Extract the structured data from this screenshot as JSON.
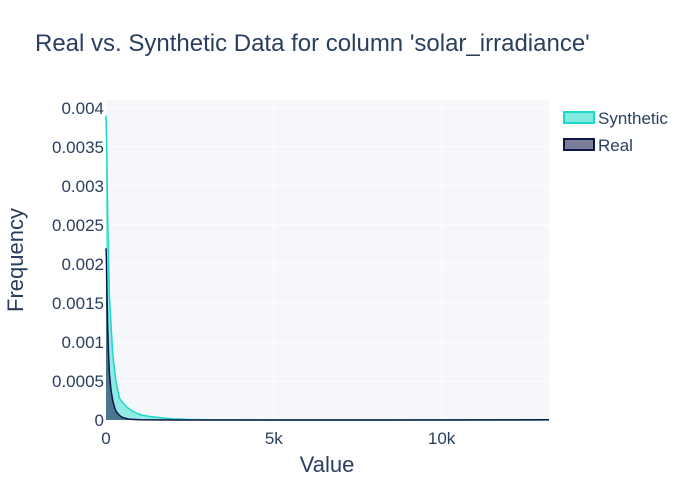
{
  "chart_data": {
    "type": "area",
    "title": "Real vs. Synthetic Data for column 'solar_irradiance'",
    "xlabel": "Value",
    "ylabel": "Frequency",
    "xlim": [
      0,
      13200
    ],
    "ylim": [
      0,
      0.0041
    ],
    "x_ticks": [
      0,
      5000,
      10000
    ],
    "x_tick_labels": [
      "0",
      "5k",
      "10k"
    ],
    "y_ticks": [
      0,
      0.0005,
      0.001,
      0.0015,
      0.002,
      0.0025,
      0.003,
      0.0035,
      0.004
    ],
    "y_tick_labels": [
      "0",
      "0.0005",
      "0.001",
      "0.0015",
      "0.002",
      "0.0025",
      "0.003",
      "0.0035",
      "0.004"
    ],
    "grid": true,
    "legend_position": "top-right",
    "series": [
      {
        "name": "Synthetic",
        "color": "#1ad9c8",
        "x": [
          0,
          25,
          50,
          100,
          200,
          300,
          400,
          600,
          800,
          1000,
          1300,
          1600,
          2000,
          2500,
          3000,
          4000,
          5000,
          7000,
          10000,
          13200
        ],
        "y": [
          0.0039,
          0.0034,
          0.0026,
          0.0016,
          0.00085,
          0.00048,
          0.00028,
          0.00017,
          0.00011,
          7e-05,
          4.5e-05,
          3e-05,
          1.5e-05,
          7e-06,
          3e-06,
          1.2e-06,
          5e-07,
          2e-07,
          1e-07,
          1e-07
        ]
      },
      {
        "name": "Real",
        "color": "#0f1447",
        "x": [
          0,
          10,
          25,
          50,
          75,
          100,
          150,
          200,
          250,
          300,
          400,
          500,
          700,
          1000,
          1500,
          2000,
          3000,
          5000,
          8000,
          13200
        ],
        "y": [
          0.0022,
          0.0021,
          0.0017,
          0.0012,
          0.00085,
          0.0006,
          0.00038,
          0.00025,
          0.00017,
          0.00011,
          6e-05,
          3e-05,
          1e-05,
          4e-06,
          1e-06,
          5e-07,
          2e-07,
          1e-07,
          2e-07,
          3e-06
        ]
      }
    ]
  }
}
